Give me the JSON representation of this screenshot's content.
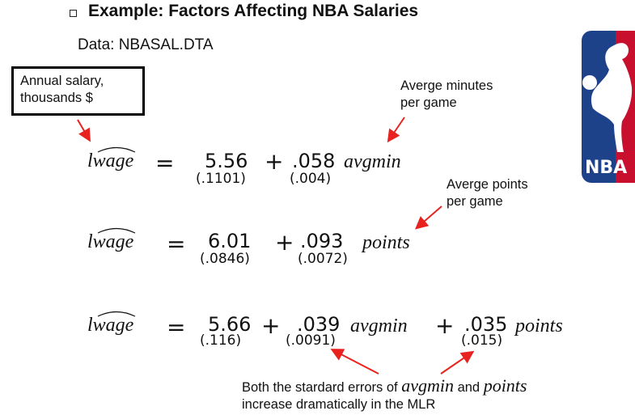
{
  "slide": {
    "title": "Example: Factors Affecting NBA Salaries",
    "data_source": "Data: NBASAL.DTA"
  },
  "annotations": {
    "salary_line1": "Annual salary,",
    "salary_line2": "thousands $",
    "minutes_line1": "Averge minutes",
    "minutes_line2": "per game",
    "points_line1": "Averge points",
    "points_line2": "per game",
    "footnote_before": "Both the stardard errors of",
    "footnote_var1": "avgmin",
    "footnote_and": "and",
    "footnote_var2": "points",
    "footnote_line2": "increase dramatically in the MLR"
  },
  "equations": [
    {
      "lhs": "lwage",
      "intercept": "5.56",
      "intercept_se": "(.1101)",
      "terms": [
        {
          "coef": ".058",
          "se": "(.004)",
          "var": "avgmin"
        }
      ]
    },
    {
      "lhs": "lwage",
      "intercept": "6.01",
      "intercept_se": "(.0846)",
      "terms": [
        {
          "coef": ".093",
          "se": "(.0072)",
          "var": "points"
        }
      ]
    },
    {
      "lhs": "lwage",
      "intercept": "5.66",
      "intercept_se": "(.116)",
      "terms": [
        {
          "coef": ".039",
          "se": "(.0091)",
          "var": "avgmin"
        },
        {
          "coef": ".035",
          "se": "(.015)",
          "var": "points"
        }
      ]
    }
  ],
  "symbols": {
    "equals": "=",
    "plus": "+"
  },
  "logo": {
    "text": "NBA",
    "blue": "#1d428a",
    "red": "#c8102e"
  },
  "colors": {
    "arrow": "#e8231f"
  }
}
